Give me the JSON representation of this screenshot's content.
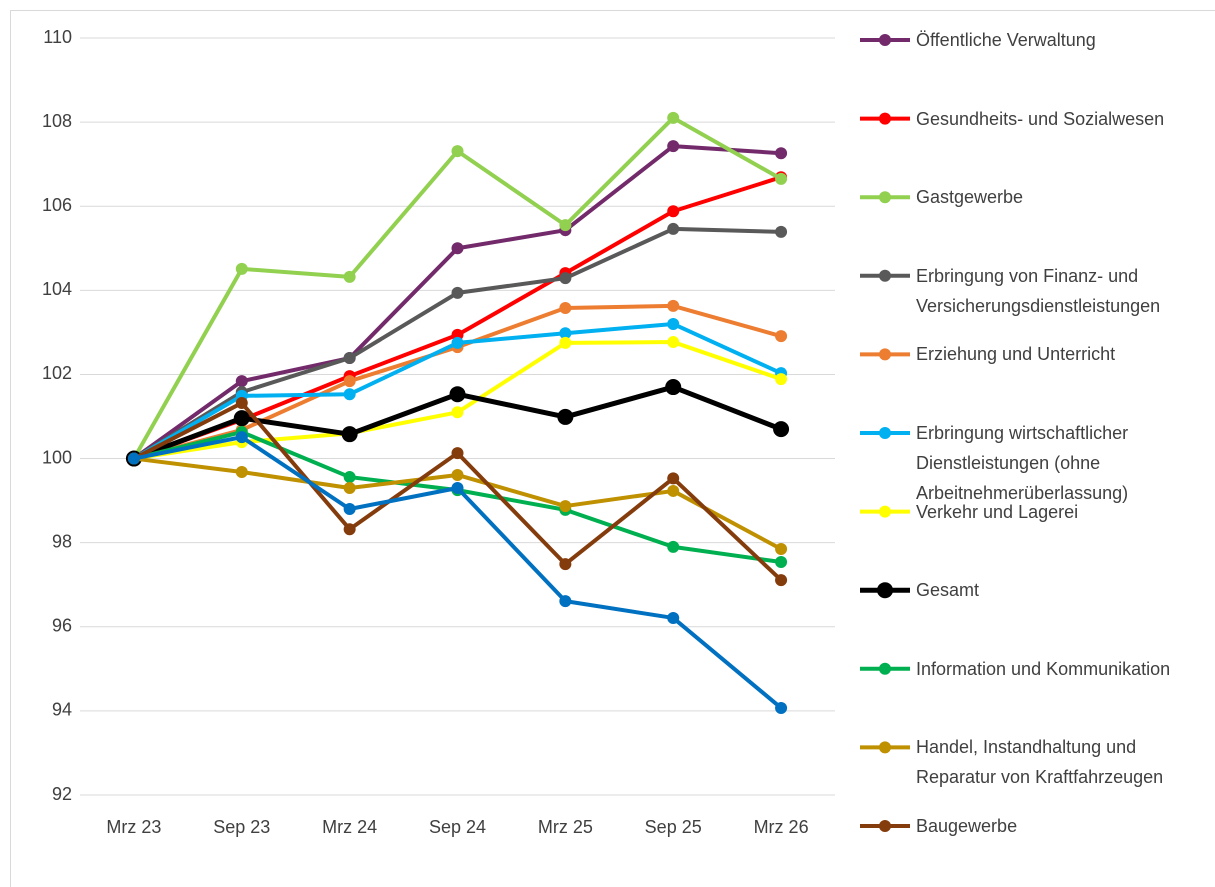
{
  "chart_data": {
    "type": "line",
    "categories": [
      "Mrz 23",
      "Sep 23",
      "Mrz 24",
      "Sep 24",
      "Mrz 25",
      "Sep 25",
      "Mrz 26"
    ],
    "ylim": [
      92,
      110
    ],
    "yticks": [
      92,
      94,
      96,
      98,
      100,
      102,
      104,
      106,
      108,
      110
    ],
    "grid": true,
    "series": [
      {
        "name": "Öffentliche Verwaltung",
        "color": "#722a6b",
        "values": [
          100,
          101.84,
          102.39,
          105.0,
          105.43,
          107.43,
          107.26
        ]
      },
      {
        "name": "Gesundheits- und Sozialwesen",
        "color": "#ff0000",
        "values": [
          100,
          100.92,
          101.96,
          102.94,
          104.41,
          105.88,
          106.69
        ]
      },
      {
        "name": "Gastgewerbe",
        "color": "#92d050",
        "values": [
          100,
          104.51,
          104.32,
          107.31,
          105.55,
          108.1,
          106.65
        ]
      },
      {
        "name": "Erbringung von Finanz- und Versicherungsdienstleistungen",
        "color": "#595959",
        "values": [
          100,
          101.58,
          102.39,
          103.94,
          104.29,
          105.46,
          105.39
        ]
      },
      {
        "name": "Erziehung und Unterricht",
        "color": "#ed7d31",
        "values": [
          100,
          100.68,
          101.84,
          102.65,
          103.58,
          103.63,
          102.91
        ]
      },
      {
        "name": "Erbringung wirtschaftlicher Dienstleistungen (ohne Arbeitnehmerüberlassung)",
        "color": "#00b0f0",
        "values": [
          100,
          101.49,
          101.53,
          102.75,
          102.98,
          103.2,
          102.03
        ]
      },
      {
        "name": "Verkehr und Lagerei",
        "color": "#ffff00",
        "values": [
          100,
          100.39,
          100.6,
          101.1,
          102.75,
          102.77,
          101.89
        ]
      },
      {
        "name": "Gesamt",
        "color": "#000000",
        "values": [
          100,
          100.96,
          100.58,
          101.53,
          100.99,
          101.7,
          100.7
        ]
      },
      {
        "name": "Information und Kommunikation",
        "color": "#00b050",
        "values": [
          100,
          100.63,
          99.56,
          99.25,
          98.78,
          97.9,
          97.54
        ]
      },
      {
        "name": "Handel, Instandhaltung und Reparatur von Kraftfahrzeugen",
        "color": "#bf9000",
        "values": [
          100,
          99.68,
          99.3,
          99.61,
          98.87,
          99.23,
          97.85
        ]
      },
      {
        "name": "Baugewerbe",
        "color": "#843c0c",
        "values": [
          100,
          101.32,
          98.32,
          100.13,
          97.49,
          99.53,
          97.11
        ]
      },
      {
        "name": null,
        "color": "#0070c0",
        "values": [
          100,
          100.51,
          98.8,
          99.3,
          96.61,
          96.21,
          94.07
        ]
      }
    ]
  }
}
